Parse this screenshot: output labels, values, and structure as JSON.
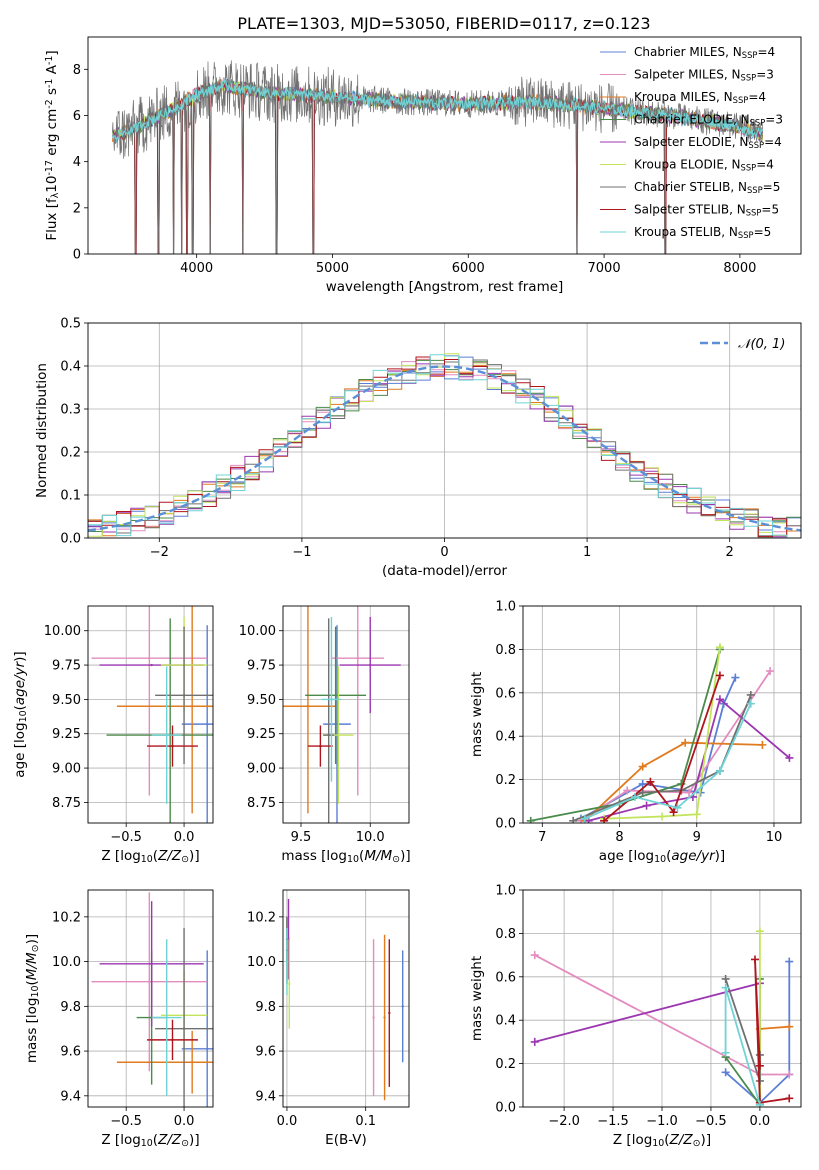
{
  "figure_title": "PLATE=1303, MJD=53050, FIBERID=0117, z=0.123",
  "panels": {
    "spectrum": {
      "ylabel": "Flux [f$_\\lambda$10$^{-17}$ erg cm$^{-2}$ s$^{-1}$ A$^{-1}$]",
      "xlabel": "wavelength [Angstrom, rest frame]",
      "xticks": [
        "4000",
        "5000",
        "6000",
        "7000",
        "8000"
      ],
      "yticks": [
        "0",
        "2",
        "4",
        "6",
        "8"
      ],
      "legend": [
        "Chabrier MILES, N$_{SSP}$=4",
        "Salpeter MILES, N$_{SSP}$=3",
        "Kroupa MILES, N$_{SSP}$=4",
        "Chabrier ELODIE, N$_{SSP}$=3",
        "Salpeter ELODIE, N$_{SSP}$=4",
        "Kroupa ELODIE, N$_{SSP}$=4",
        "Chabrier STELIB, N$_{SSP}$=5",
        "Salpeter STELIB, N$_{SSP}$=5",
        "Kroupa STELIB, N$_{SSP}$=5"
      ]
    },
    "residuals": {
      "ylabel": "Normed distribution",
      "xlabel": "(data-model)/error",
      "xticks": [
        "−2",
        "−1",
        "0",
        "1",
        "2"
      ],
      "yticks": [
        "0.0",
        "0.1",
        "0.2",
        "0.3",
        "0.4",
        "0.5"
      ],
      "legend": "𝒩(0, 1)"
    },
    "age_Z": {
      "ylabel": "age  [log$_{10}$($age/yr$)]",
      "xlabel": "Z [log$_{10}$($Z/Z_\\odot$)]",
      "xticks": [
        "−0.5",
        "0.0"
      ],
      "yticks": [
        "8.75",
        "9.00",
        "9.25",
        "9.50",
        "9.75",
        "10.00"
      ]
    },
    "age_mass": {
      "xlabel": "mass [log$_{10}$($M/M_\\odot$)]",
      "xticks": [
        "9.5",
        "10.0"
      ],
      "yticks": [
        "8.75",
        "9.00",
        "9.25",
        "9.50",
        "9.75",
        "10.00"
      ]
    },
    "weight_age": {
      "ylabel": "mass weight",
      "xlabel": "age  [log$_{10}$($age/yr$)]",
      "xticks": [
        "7",
        "8",
        "9",
        "10"
      ],
      "yticks": [
        "0.0",
        "0.2",
        "0.4",
        "0.6",
        "0.8",
        "1.0"
      ]
    },
    "mass_Z": {
      "ylabel": "mass [log$_{10}$($M/M_\\odot$)]",
      "xlabel": "Z [log$_{10}$($Z/Z_\\odot$)]",
      "xticks": [
        "−0.5",
        "0.0"
      ],
      "yticks": [
        "9.4",
        "9.6",
        "9.8",
        "10.0",
        "10.2"
      ]
    },
    "mass_ebv": {
      "xlabel": "E(B-V)",
      "xticks": [
        "0.0",
        "0.1"
      ],
      "yticks": [
        "9.4",
        "9.6",
        "9.8",
        "10.0",
        "10.2"
      ]
    },
    "weight_Z": {
      "ylabel": "mass weight",
      "xlabel": "Z [log$_{10}$($Z/Z_\\odot$)]",
      "xticks": [
        "−2.0",
        "−1.5",
        "−1.0",
        "−0.5",
        "0.0"
      ],
      "yticks": [
        "0.0",
        "0.2",
        "0.4",
        "0.6",
        "0.8",
        "1.0"
      ]
    }
  },
  "colors": [
    "#5b7fd6",
    "#e38cbf",
    "#e07b1f",
    "#4a8a4a",
    "#9b36b0",
    "#c2e45a",
    "#707070",
    "#b0151d",
    "#6fd3d6"
  ],
  "chart_data": [
    {
      "type": "line",
      "panel": "spectrum",
      "xlim": [
        3200,
        8450
      ],
      "ylim": [
        0,
        9.4
      ],
      "x_range_data": [
        3380,
        8170
      ],
      "series_shape": {
        "level_points": [
          [
            3380,
            5.1
          ],
          [
            3500,
            5.3
          ],
          [
            3600,
            5.6
          ],
          [
            3800,
            6.2
          ],
          [
            4000,
            6.9
          ],
          [
            4200,
            7.3
          ],
          [
            4500,
            7.0
          ],
          [
            5000,
            6.8
          ],
          [
            5500,
            6.6
          ],
          [
            6000,
            6.5
          ],
          [
            6500,
            6.6
          ],
          [
            7000,
            6.3
          ],
          [
            7500,
            6.0
          ],
          [
            8000,
            5.5
          ],
          [
            8170,
            5.2
          ]
        ],
        "absorption_dips": [
          3550,
          3720,
          3830,
          3890,
          3930,
          3970,
          4100,
          4340,
          4590,
          4860,
          6800,
          7450
        ]
      },
      "series": [
        {
          "name": "Chabrier MILES, N$_{SSP}$=4"
        },
        {
          "name": "Salpeter MILES, N$_{SSP}$=3"
        },
        {
          "name": "Kroupa MILES, N$_{SSP}$=4"
        },
        {
          "name": "Chabrier ELODIE, N$_{SSP}$=3"
        },
        {
          "name": "Salpeter ELODIE, N$_{SSP}$=4"
        },
        {
          "name": "Kroupa ELODIE, N$_{SSP}$=4"
        },
        {
          "name": "Chabrier STELIB, N$_{SSP}$=5"
        },
        {
          "name": "Salpeter STELIB, N$_{SSP}$=5"
        },
        {
          "name": "Kroupa STELIB, N$_{SSP}$=5"
        }
      ]
    },
    {
      "type": "area",
      "panel": "residuals",
      "xlim": [
        -2.5,
        2.5
      ],
      "ylim": [
        0,
        0.5
      ],
      "bin_width": 0.1,
      "grid": true,
      "reference": {
        "name": "𝒩(0, 1)",
        "mean": 0,
        "sigma": 1
      }
    },
    {
      "type": "scatter",
      "panel": "age_Z",
      "xlim": [
        -0.83,
        0.25
      ],
      "ylim": [
        8.6,
        10.18
      ],
      "grid": true,
      "points": [
        {
          "x": 0.2,
          "xerr": 0.22,
          "y": 9.32,
          "yerr": 0.72
        },
        {
          "x": -0.3,
          "xerr": 0.5,
          "y": 9.8,
          "yerr": 1.0
        },
        {
          "x": 0.07,
          "xerr": 0.65,
          "y": 9.45,
          "yerr": 0.78
        },
        {
          "x": -0.12,
          "xerr": 0.55,
          "y": 9.24,
          "yerr": 0.85
        },
        {
          "x": -0.28,
          "xerr": 0.45,
          "y": 9.75,
          "yerr": 0.0
        },
        {
          "x": 0.0,
          "xerr": 0.2,
          "y": 9.75,
          "yerr": 0.35
        },
        {
          "x": 0.0,
          "xerr": 0.25,
          "y": 9.53,
          "yerr": 0.5
        },
        {
          "x": -0.1,
          "xerr": 0.22,
          "y": 9.16,
          "yerr": 0.15
        },
        {
          "x": -0.15,
          "xerr": 0.13,
          "y": 9.24,
          "yerr": 0.5
        }
      ]
    },
    {
      "type": "scatter",
      "panel": "age_mass",
      "xlim": [
        9.37,
        10.28
      ],
      "ylim": [
        8.6,
        10.18
      ],
      "grid": true,
      "points": [
        {
          "x": 9.76,
          "xerr": 0.1,
          "y": 9.32,
          "yerr": 0.72
        },
        {
          "x": 9.91,
          "xerr": 0.19,
          "y": 9.8,
          "yerr": 1.0
        },
        {
          "x": 9.55,
          "xerr": 0.2,
          "y": 9.45,
          "yerr": 0.78
        },
        {
          "x": 9.75,
          "xerr": 0.22,
          "y": 9.53,
          "yerr": 0.5
        },
        {
          "x": 10.0,
          "xerr": 0.22,
          "y": 9.75,
          "yerr": 0.35
        },
        {
          "x": 9.77,
          "xerr": 0.11,
          "y": 9.24,
          "yerr": 0.5
        },
        {
          "x": 9.7,
          "xerr": 0.04,
          "y": 9.24,
          "yerr": 0.85
        },
        {
          "x": 9.64,
          "xerr": 0.09,
          "y": 9.16,
          "yerr": 0.15
        },
        {
          "x": 9.72,
          "xerr": 0.07,
          "y": 9.5,
          "yerr": 0.6
        }
      ]
    },
    {
      "type": "line",
      "panel": "weight_age",
      "xlim": [
        6.75,
        10.35
      ],
      "ylim": [
        0,
        1.0
      ],
      "grid": true,
      "series": [
        {
          "x": [
            7.5,
            8.3,
            9.05,
            9.35,
            9.5
          ],
          "y": [
            0.02,
            0.18,
            0.14,
            0.55,
            0.67
          ]
        },
        {
          "x": [
            7.5,
            8.1,
            8.9,
            9.95
          ],
          "y": [
            0.01,
            0.15,
            0.14,
            0.7
          ]
        },
        {
          "x": [
            7.55,
            8.3,
            8.85,
            9.85
          ],
          "y": [
            0.01,
            0.26,
            0.37,
            0.36
          ]
        },
        {
          "x": [
            6.85,
            8.0,
            8.8,
            9.3
          ],
          "y": [
            0.01,
            0.09,
            0.18,
            0.8
          ]
        },
        {
          "x": [
            7.6,
            8.35,
            8.95,
            9.3,
            10.2
          ],
          "y": [
            0.01,
            0.08,
            0.12,
            0.57,
            0.3
          ]
        },
        {
          "x": [
            7.8,
            8.55,
            9.0,
            9.3
          ],
          "y": [
            0.02,
            0.03,
            0.04,
            0.81
          ]
        },
        {
          "x": [
            7.4,
            8.3,
            8.8,
            9.3,
            9.7
          ],
          "y": [
            0.01,
            0.14,
            0.15,
            0.24,
            0.59
          ]
        },
        {
          "x": [
            7.8,
            8.4,
            8.7,
            9.3
          ],
          "y": [
            0.01,
            0.19,
            0.05,
            0.68
          ]
        },
        {
          "x": [
            7.55,
            8.2,
            8.75,
            9.3,
            9.7
          ],
          "y": [
            0.02,
            0.12,
            0.07,
            0.24,
            0.55
          ]
        }
      ]
    },
    {
      "type": "scatter",
      "panel": "mass_Z",
      "xlim": [
        -0.83,
        0.25
      ],
      "ylim": [
        9.35,
        10.32
      ],
      "grid": true,
      "points": [
        {
          "x": 0.2,
          "xerr": 0.22,
          "y": 9.61,
          "yerr": 0.44
        },
        {
          "x": -0.3,
          "xerr": 0.5,
          "y": 9.91,
          "yerr": 0.4
        },
        {
          "x": 0.07,
          "xerr": 0.65,
          "y": 9.55,
          "yerr": 0.14
        },
        {
          "x": -0.28,
          "xerr": 0.13,
          "y": 9.75,
          "yerr": 0.3
        },
        {
          "x": -0.28,
          "xerr": 0.45,
          "y": 9.99,
          "yerr": 0.28
        },
        {
          "x": 0.0,
          "xerr": 0.2,
          "y": 9.76,
          "yerr": 0.2
        },
        {
          "x": 0.0,
          "xerr": 0.25,
          "y": 9.7,
          "yerr": 0.45
        },
        {
          "x": -0.1,
          "xerr": 0.22,
          "y": 9.65,
          "yerr": 0.09
        },
        {
          "x": -0.15,
          "xerr": 0.13,
          "y": 9.75,
          "yerr": 0.35
        }
      ]
    },
    {
      "type": "scatter",
      "panel": "mass_ebv",
      "xlim": [
        -0.005,
        0.155
      ],
      "ylim": [
        9.35,
        10.32
      ],
      "grid": true,
      "points": [
        {
          "x": 0.147,
          "y": 9.8,
          "yerr": 0.25
        },
        {
          "x": 0.11,
          "y": 9.75,
          "yerr": 0.35
        },
        {
          "x": 0.124,
          "y": 9.75,
          "yerr": 0.37
        },
        {
          "x": 0.0,
          "y": 10.1,
          "yerr": 0.1
        },
        {
          "x": 0.002,
          "y": 10.1,
          "yerr": 0.18
        },
        {
          "x": 0.003,
          "y": 9.9,
          "yerr": 0.2
        },
        {
          "x": 0.0,
          "y": 10.05,
          "yerr": 0.15
        },
        {
          "x": 0.13,
          "y": 9.77,
          "yerr": 0.33
        },
        {
          "x": 0.0,
          "y": 10.0,
          "yerr": 0.15
        }
      ]
    },
    {
      "type": "line",
      "panel": "weight_Z",
      "xlim": [
        -2.42,
        0.42
      ],
      "ylim": [
        0,
        1.0
      ],
      "grid": true,
      "series": [
        {
          "x": [
            -0.35,
            0.0,
            0.3,
            0.3
          ],
          "y": [
            0.16,
            0.02,
            0.15,
            0.67
          ]
        },
        {
          "x": [
            -2.3,
            0.0,
            0.3
          ],
          "y": [
            0.7,
            0.15,
            0.15
          ]
        },
        {
          "x": [
            0.0,
            0.0,
            0.3
          ],
          "y": [
            0.02,
            0.36,
            0.37
          ]
        },
        {
          "x": [
            -0.35,
            0.0,
            0.0
          ],
          "y": [
            0.23,
            0.01,
            0.59
          ]
        },
        {
          "x": [
            -2.3,
            0.0
          ],
          "y": [
            0.3,
            0.57
          ]
        },
        {
          "x": [
            0.0,
            0.0
          ],
          "y": [
            0.02,
            0.81
          ]
        },
        {
          "x": [
            -0.35,
            0.0,
            0.0
          ],
          "y": [
            0.59,
            0.12,
            0.24
          ]
        },
        {
          "x": [
            0.0,
            -0.05,
            0.0,
            0.3
          ],
          "y": [
            0.19,
            0.68,
            0.02,
            0.04
          ]
        },
        {
          "x": [
            -0.35,
            -0.35,
            0.0
          ],
          "y": [
            0.25,
            0.55,
            0.01
          ]
        }
      ]
    }
  ]
}
